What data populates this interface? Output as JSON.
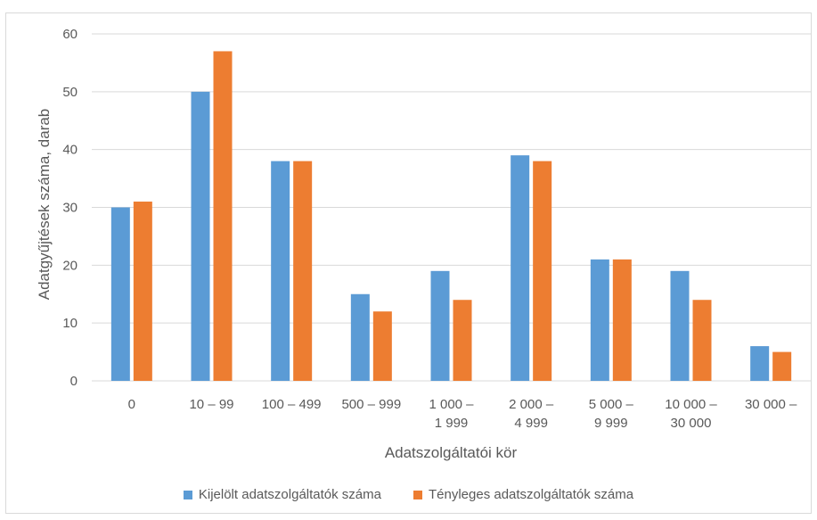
{
  "chart_data": {
    "type": "bar",
    "xlabel": "Adatszolgáltatói kör",
    "ylabel": "Adatgyűjtések száma, darab",
    "ylim": [
      0,
      60
    ],
    "yticks": [
      "0",
      "10",
      "20",
      "30",
      "40",
      "50",
      "60"
    ],
    "grid": true,
    "legend_position": "bottom",
    "categories": [
      [
        "0"
      ],
      [
        "10 – 99"
      ],
      [
        "100 – 499"
      ],
      [
        "500 – 999"
      ],
      [
        "1 000 –",
        "1 999"
      ],
      [
        "2 000 –",
        "4 999"
      ],
      [
        "5 000 –",
        "9 999"
      ],
      [
        "10 000 –",
        "30 000"
      ],
      [
        "30 000 –"
      ]
    ],
    "series": [
      {
        "name": "Kijelölt adatszolgáltatók száma",
        "color": "#5b9bd5",
        "values": [
          30,
          50,
          38,
          15,
          19,
          39,
          21,
          19,
          6
        ]
      },
      {
        "name": "Tényleges adatszolgáltatók száma",
        "color": "#ed7d31",
        "values": [
          31,
          57,
          38,
          12,
          14,
          38,
          21,
          14,
          5
        ]
      }
    ]
  }
}
